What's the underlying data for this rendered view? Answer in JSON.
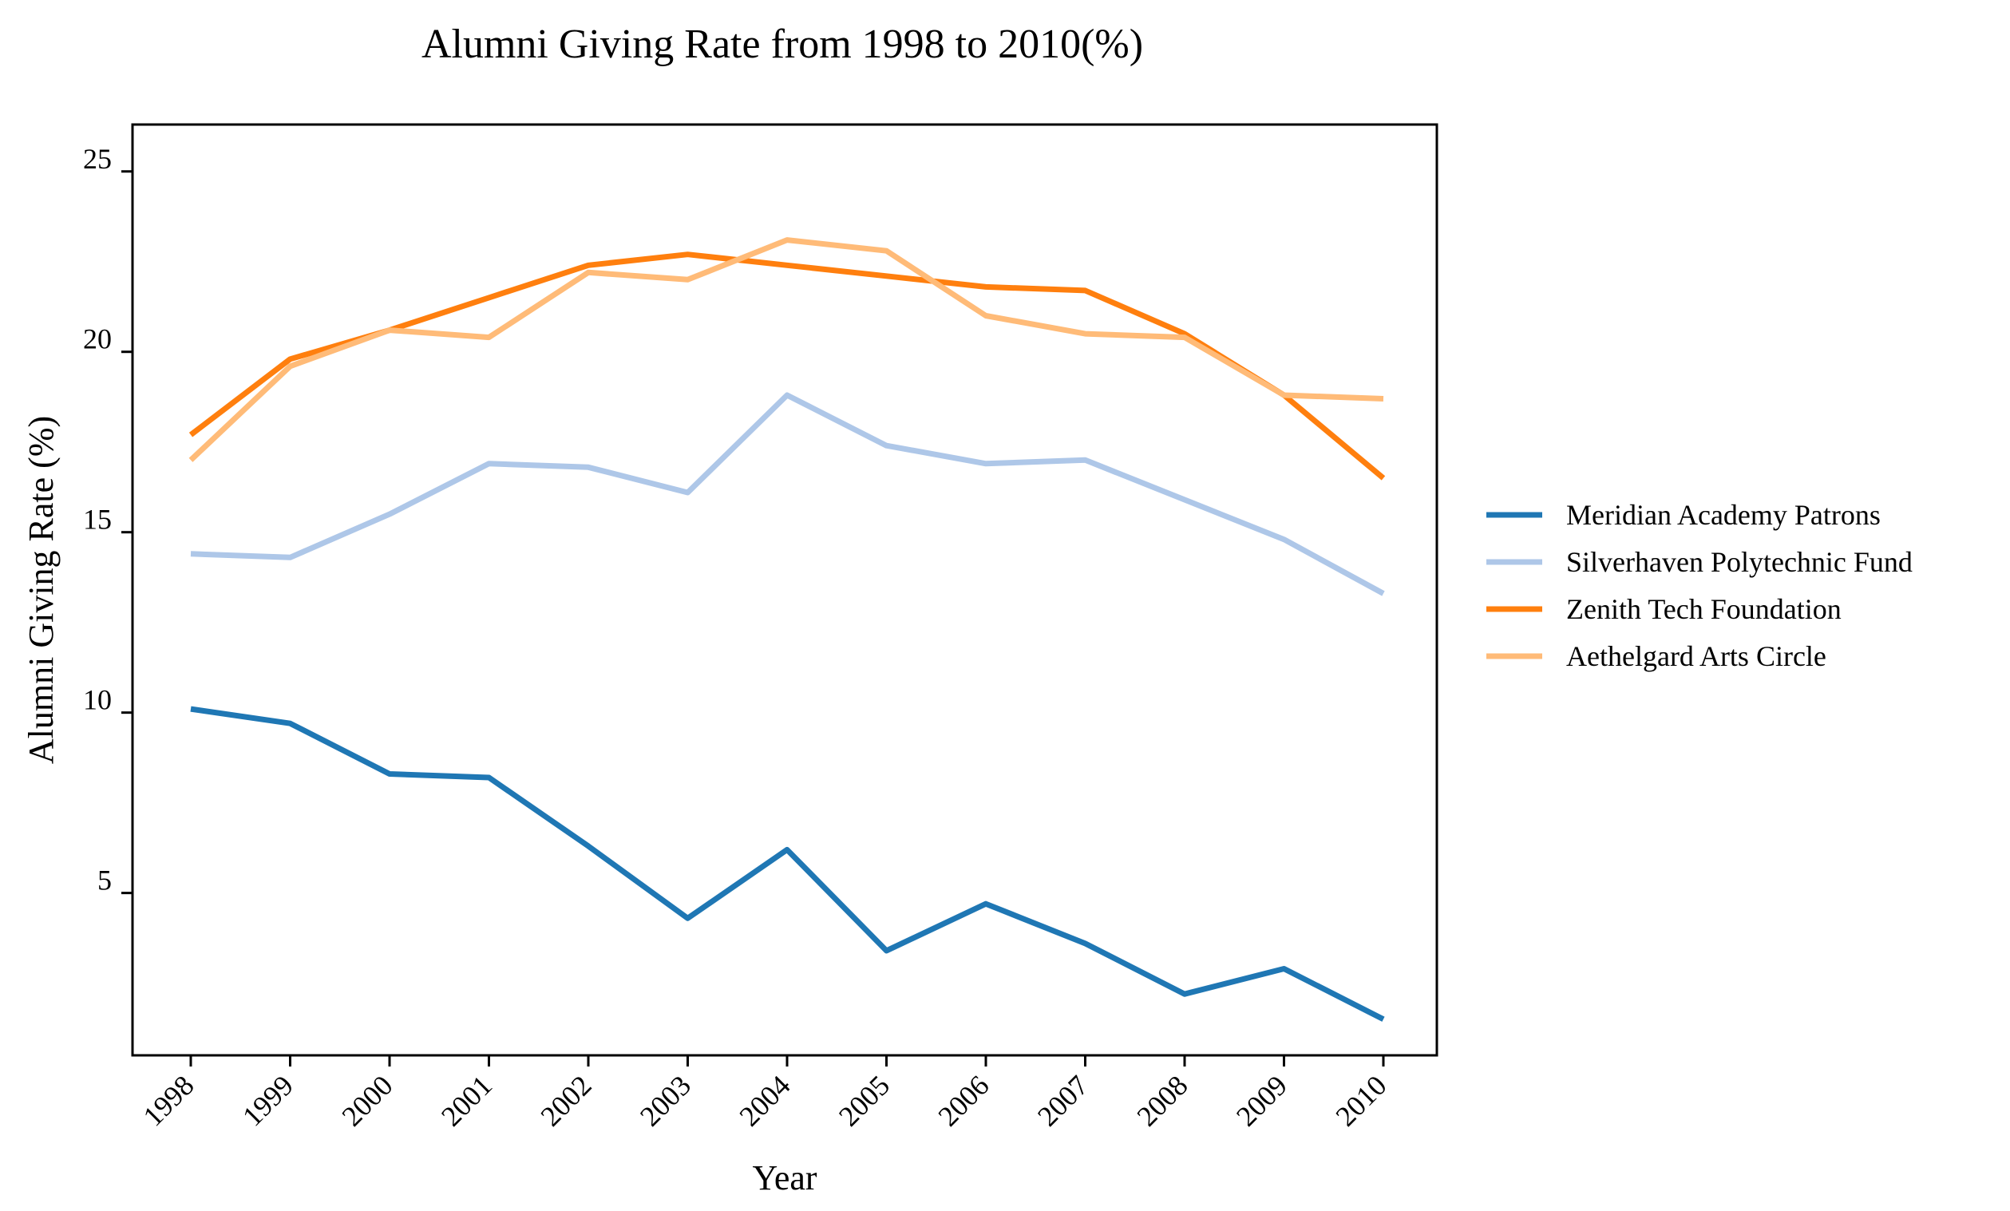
{
  "chart_data": {
    "type": "line",
    "title": "Alumni Giving Rate from 1998 to 2010(%)",
    "xlabel": "Year",
    "ylabel": "Alumni Giving Rate (%)",
    "x": [
      "1998",
      "1999",
      "2000",
      "2001",
      "2002",
      "2003",
      "2004",
      "2005",
      "2006",
      "2007",
      "2008",
      "2009",
      "2010"
    ],
    "yticks": [
      5,
      10,
      15,
      20,
      25
    ],
    "ylim": [
      0.5,
      26.3
    ],
    "grid": false,
    "legend_position": "right",
    "series": [
      {
        "name": "Meridian Academy Patrons",
        "color": "#1f77b4",
        "values": [
          10.1,
          9.7,
          8.3,
          8.2,
          6.3,
          4.3,
          6.2,
          3.4,
          4.7,
          3.6,
          2.2,
          2.9,
          1.5
        ]
      },
      {
        "name": "Silverhaven Polytechnic Fund",
        "color": "#aec7e8",
        "values": [
          14.4,
          14.3,
          15.5,
          16.9,
          16.8,
          16.1,
          18.8,
          17.4,
          16.9,
          17.0,
          15.9,
          14.8,
          13.3
        ]
      },
      {
        "name": "Zenith Tech Foundation",
        "color": "#ff7f0e",
        "values": [
          17.7,
          19.8,
          20.6,
          21.5,
          22.4,
          22.7,
          22.4,
          22.1,
          21.8,
          21.7,
          20.5,
          18.8,
          16.5
        ]
      },
      {
        "name": "Aethelgard Arts Circle",
        "color": "#ffbb78",
        "values": [
          17.0,
          19.6,
          20.6,
          20.4,
          22.2,
          22.0,
          23.1,
          22.8,
          21.0,
          20.5,
          20.4,
          18.8,
          18.7
        ]
      }
    ]
  }
}
